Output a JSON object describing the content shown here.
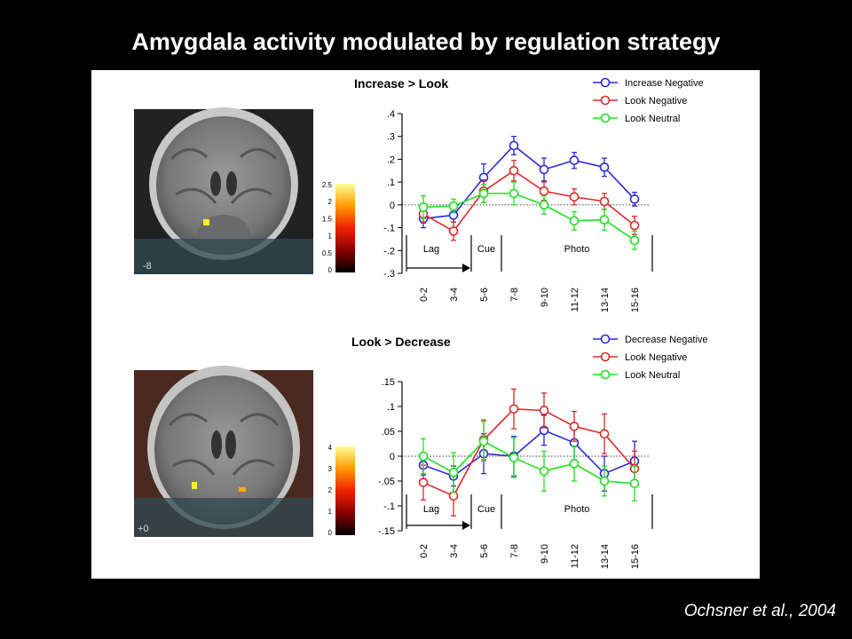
{
  "slide": {
    "title": "Amygdala activity modulated by regulation strategy",
    "citation": "Ochsner et al., 2004"
  },
  "colors": {
    "blue": "#2a2ad6",
    "red": "#dd2a2a",
    "green": "#22e022"
  },
  "brains": [
    {
      "slice_label": "-8",
      "colorbar_ticks": [
        "2.5",
        "2",
        "1.5",
        "1",
        "0.5",
        "0"
      ]
    },
    {
      "slice_label": "+0",
      "colorbar_ticks": [
        "4",
        "3",
        "2",
        "1",
        "0"
      ]
    }
  ],
  "chart_data": [
    {
      "type": "line",
      "title": "Increase > Look",
      "categories": [
        "0-2",
        "3-4",
        "5-6",
        "7-8",
        "9-10",
        "11-12",
        "13-14",
        "15-16"
      ],
      "ylim": [
        -0.3,
        0.4
      ],
      "yticks": [
        0.4,
        0.3,
        0.2,
        0.1,
        0,
        -0.1,
        -0.2,
        -0.3
      ],
      "ytick_labels": [
        ".4",
        ".3",
        ".2",
        ".1",
        "0",
        "-.1",
        "-.2",
        "-.3"
      ],
      "phases": [
        "Lag",
        "Cue",
        "Photo"
      ],
      "legend": "top-right",
      "series": [
        {
          "name": "Increase Negative",
          "color": "blue",
          "values": [
            -0.06,
            -0.045,
            0.12,
            0.26,
            0.155,
            0.195,
            0.165,
            0.025
          ],
          "errors": [
            0.04,
            0.03,
            0.06,
            0.04,
            0.05,
            0.035,
            0.04,
            0.03
          ]
        },
        {
          "name": "Look Negative",
          "color": "red",
          "values": [
            -0.04,
            -0.115,
            0.06,
            0.15,
            0.06,
            0.035,
            0.015,
            -0.09
          ],
          "errors": [
            0.04,
            0.04,
            0.05,
            0.045,
            0.04,
            0.035,
            0.035,
            0.04
          ]
        },
        {
          "name": "Look Neutral",
          "color": "green",
          "values": [
            -0.01,
            -0.005,
            0.05,
            0.05,
            0.0,
            -0.07,
            -0.065,
            -0.155
          ],
          "errors": [
            0.05,
            0.03,
            0.04,
            0.05,
            0.04,
            0.04,
            0.045,
            0.04
          ]
        }
      ]
    },
    {
      "type": "line",
      "title": "Look > Decrease",
      "categories": [
        "0-2",
        "3-4",
        "5-6",
        "7-8",
        "9-10",
        "11-12",
        "13-14",
        "15-16"
      ],
      "ylim": [
        -0.15,
        0.15
      ],
      "yticks": [
        0.15,
        0.1,
        0.05,
        0,
        -0.05,
        -0.1,
        -0.15
      ],
      "ytick_labels": [
        ".15",
        ".1",
        ".05",
        "0",
        "-.05",
        "-.1",
        "-.15"
      ],
      "phases": [
        "Lag",
        "Cue",
        "Photo"
      ],
      "legend": "top-right",
      "series": [
        {
          "name": "Decrease Negative",
          "color": "blue",
          "values": [
            -0.018,
            -0.04,
            0.005,
            0.0,
            0.052,
            0.027,
            -0.035,
            -0.01
          ],
          "errors": [
            0.02,
            0.02,
            0.04,
            0.04,
            0.03,
            0.035,
            0.035,
            0.04
          ]
        },
        {
          "name": "Look Negative",
          "color": "red",
          "values": [
            -0.053,
            -0.08,
            0.033,
            0.095,
            0.092,
            0.06,
            0.045,
            -0.025
          ],
          "errors": [
            0.035,
            0.04,
            0.04,
            0.04,
            0.035,
            0.03,
            0.04,
            0.035
          ]
        },
        {
          "name": "Look Neutral",
          "color": "green",
          "values": [
            0.0,
            -0.033,
            0.03,
            -0.003,
            -0.03,
            -0.015,
            -0.05,
            -0.055
          ],
          "errors": [
            0.035,
            0.04,
            0.04,
            0.04,
            0.04,
            0.035,
            0.03,
            0.035
          ]
        }
      ]
    }
  ]
}
